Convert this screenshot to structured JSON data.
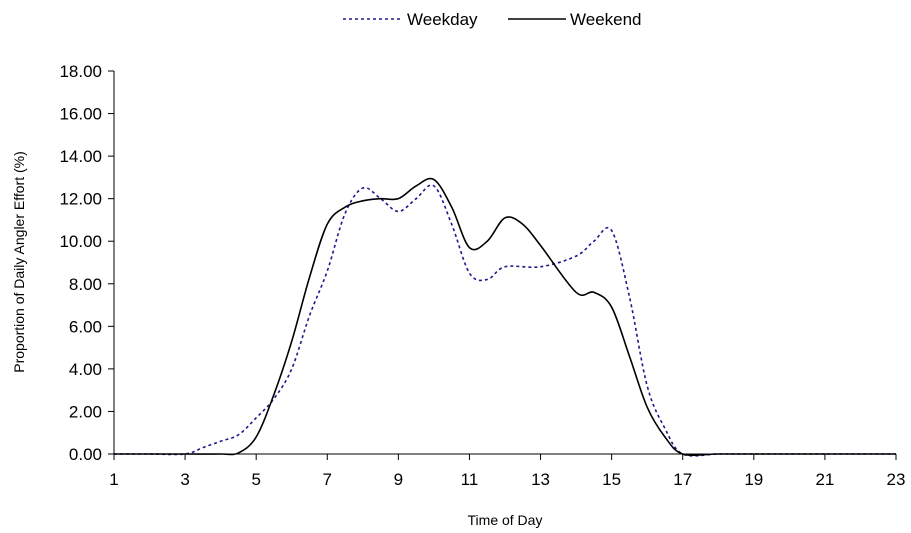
{
  "chart_data": {
    "type": "line",
    "title": "",
    "xlabel": "Time of Day",
    "ylabel": "Proportion of Daily Angler Effort (%)",
    "xlim": [
      1,
      23
    ],
    "ylim": [
      0,
      18
    ],
    "x_ticks": [
      "1",
      "3",
      "5",
      "7",
      "9",
      "11",
      "13",
      "15",
      "17",
      "19",
      "21",
      "23"
    ],
    "y_ticks": [
      "0.00",
      "2.00",
      "4.00",
      "6.00",
      "8.00",
      "10.00",
      "12.00",
      "14.00",
      "16.00",
      "18.00"
    ],
    "grid": false,
    "legend_position": "top",
    "series": [
      {
        "name": "Weekday",
        "style": "dotted",
        "color": "#1a1a8c",
        "points": [
          [
            1,
            0.0
          ],
          [
            2,
            0.0
          ],
          [
            3,
            0.0
          ],
          [
            3.5,
            0.3
          ],
          [
            4,
            0.6
          ],
          [
            4.5,
            0.9
          ],
          [
            5,
            1.7
          ],
          [
            5.5,
            2.6
          ],
          [
            6,
            4.0
          ],
          [
            6.5,
            6.5
          ],
          [
            7,
            8.6
          ],
          [
            7.5,
            11.3
          ],
          [
            8,
            12.5
          ],
          [
            8.5,
            12.0
          ],
          [
            9,
            11.4
          ],
          [
            9.5,
            12.0
          ],
          [
            10,
            12.6
          ],
          [
            10.5,
            10.8
          ],
          [
            11,
            8.5
          ],
          [
            11.5,
            8.2
          ],
          [
            12,
            8.8
          ],
          [
            13,
            8.8
          ],
          [
            14,
            9.3
          ],
          [
            14.5,
            10.0
          ],
          [
            15,
            10.5
          ],
          [
            15.5,
            7.4
          ],
          [
            16,
            3.2
          ],
          [
            16.5,
            1.2
          ],
          [
            17,
            0.0
          ],
          [
            18,
            0.0
          ],
          [
            19,
            0.0
          ],
          [
            20,
            0.0
          ],
          [
            21,
            0.0
          ],
          [
            22,
            0.0
          ],
          [
            23,
            0.0
          ]
        ]
      },
      {
        "name": "Weekend",
        "style": "solid",
        "color": "#000000",
        "points": [
          [
            1,
            0.0
          ],
          [
            2,
            0.0
          ],
          [
            3,
            0.0
          ],
          [
            4,
            0.0
          ],
          [
            4.5,
            0.05
          ],
          [
            5,
            0.8
          ],
          [
            5.5,
            2.8
          ],
          [
            6,
            5.3
          ],
          [
            6.5,
            8.3
          ],
          [
            7,
            10.8
          ],
          [
            7.5,
            11.6
          ],
          [
            8,
            11.9
          ],
          [
            8.5,
            12.0
          ],
          [
            9,
            12.0
          ],
          [
            9.5,
            12.6
          ],
          [
            10,
            12.9
          ],
          [
            10.5,
            11.6
          ],
          [
            11,
            9.7
          ],
          [
            11.5,
            10.0
          ],
          [
            12,
            11.1
          ],
          [
            12.5,
            10.8
          ],
          [
            13,
            9.8
          ],
          [
            14,
            7.6
          ],
          [
            14.5,
            7.6
          ],
          [
            15,
            6.9
          ],
          [
            15.5,
            4.6
          ],
          [
            16,
            2.2
          ],
          [
            16.5,
            0.8
          ],
          [
            17,
            0.0
          ],
          [
            18,
            0.0
          ],
          [
            19,
            0.0
          ],
          [
            20,
            0.0
          ],
          [
            21,
            0.0
          ],
          [
            22,
            0.0
          ],
          [
            23,
            0.0
          ]
        ]
      }
    ]
  }
}
